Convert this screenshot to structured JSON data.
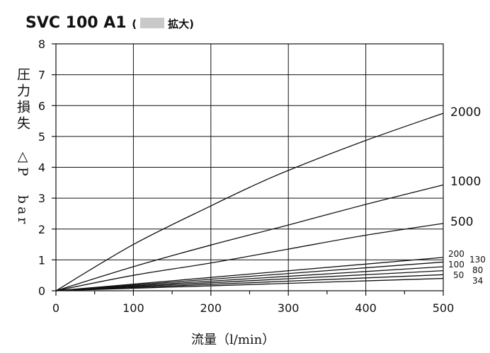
{
  "header": {
    "title_main": "SVC 100 A1",
    "title_open": "(",
    "title_zoom": "拡大)"
  },
  "chart_data": {
    "type": "line",
    "title": "SVC 100 A1",
    "xlabel": "流量（l/min）",
    "ylabel": "圧力損失　△P　bar",
    "xlim": [
      0,
      500
    ],
    "ylim": [
      0,
      8
    ],
    "xticks": [
      0,
      100,
      200,
      300,
      400,
      500
    ],
    "yticks": [
      0,
      1,
      2,
      3,
      4,
      5,
      6,
      7,
      8
    ],
    "grid": true,
    "line_color": "#111111",
    "series": [
      {
        "name": "2000",
        "x": [
          0,
          100,
          200,
          250,
          300,
          400,
          500
        ],
        "y": [
          0,
          1.5,
          2.75,
          3.35,
          3.9,
          4.87,
          5.75
        ]
      },
      {
        "name": "1000",
        "x": [
          0,
          100,
          200,
          300,
          400,
          500
        ],
        "y": [
          0,
          0.78,
          1.48,
          2.13,
          2.8,
          3.43
        ]
      },
      {
        "name": "500",
        "x": [
          0,
          100,
          200,
          300,
          400,
          500
        ],
        "y": [
          0,
          0.5,
          0.9,
          1.35,
          1.8,
          2.18
        ]
      },
      {
        "name": "200",
        "x": [
          0,
          500
        ],
        "y": [
          0,
          1.08
        ]
      },
      {
        "name": "130",
        "x": [
          0,
          500
        ],
        "y": [
          0,
          0.93
        ]
      },
      {
        "name": "100",
        "x": [
          0,
          500
        ],
        "y": [
          0,
          0.78
        ]
      },
      {
        "name": "80",
        "x": [
          0,
          500
        ],
        "y": [
          0,
          0.65
        ]
      },
      {
        "name": "50",
        "x": [
          0,
          500
        ],
        "y": [
          0,
          0.52
        ]
      },
      {
        "name": "34",
        "x": [
          0,
          500
        ],
        "y": [
          0,
          0.4
        ]
      }
    ]
  }
}
